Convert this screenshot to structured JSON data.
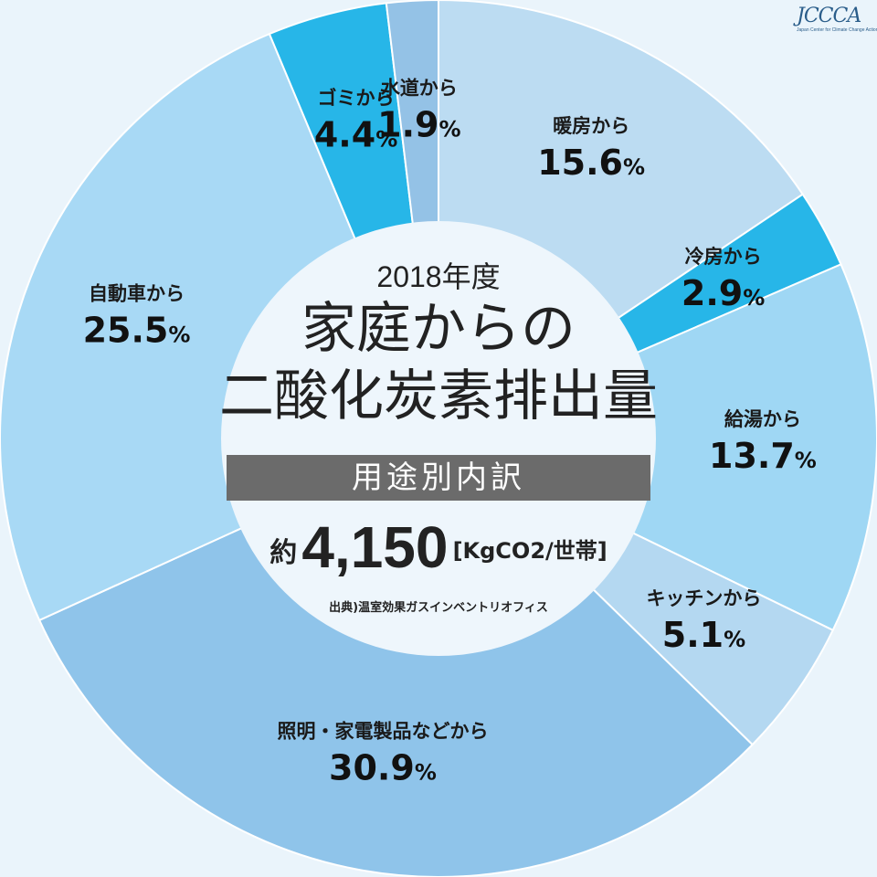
{
  "chart_data": {
    "type": "pie",
    "title": "家庭からの二酸化炭素排出量",
    "subtitle": "用途別内訳",
    "year_label": "2018年度",
    "title_lines": [
      "家庭からの",
      "二酸化炭素排出量"
    ],
    "total": {
      "prefix": "約",
      "value": "4,150",
      "unit": "[KgCO2/世帯]"
    },
    "source": "出典)温室効果ガスインベントリオフィス",
    "unit_symbol": "%",
    "slices": [
      {
        "label": "暖房から",
        "value_text": "15.6",
        "value": 15.6,
        "color": "#bcdcf2"
      },
      {
        "label": "冷房から",
        "value_text": "2.9",
        "value": 2.9,
        "color": "#27b6e8"
      },
      {
        "label": "給湯から",
        "value_text": "13.7",
        "value": 13.7,
        "color": "#9fd7f4"
      },
      {
        "label": "キッチンから",
        "value_text": "5.1",
        "value": 5.1,
        "color": "#b4d8f1"
      },
      {
        "label": "照明・家電製品などから",
        "value_text": "30.9",
        "value": 30.9,
        "color": "#8fc4ea"
      },
      {
        "label": "自動車から",
        "value_text": "25.5",
        "value": 25.5,
        "color": "#a8d9f5"
      },
      {
        "label": "ゴミから",
        "value_text": "4.4",
        "value": 4.4,
        "color": "#27b6e8"
      },
      {
        "label": "水道から",
        "value_text": "1.9",
        "value": 1.9,
        "color": "#94c2e6"
      }
    ]
  },
  "logo": {
    "text": "JCCCA",
    "subtitle": "Japan Center for Climate Change Actions"
  }
}
